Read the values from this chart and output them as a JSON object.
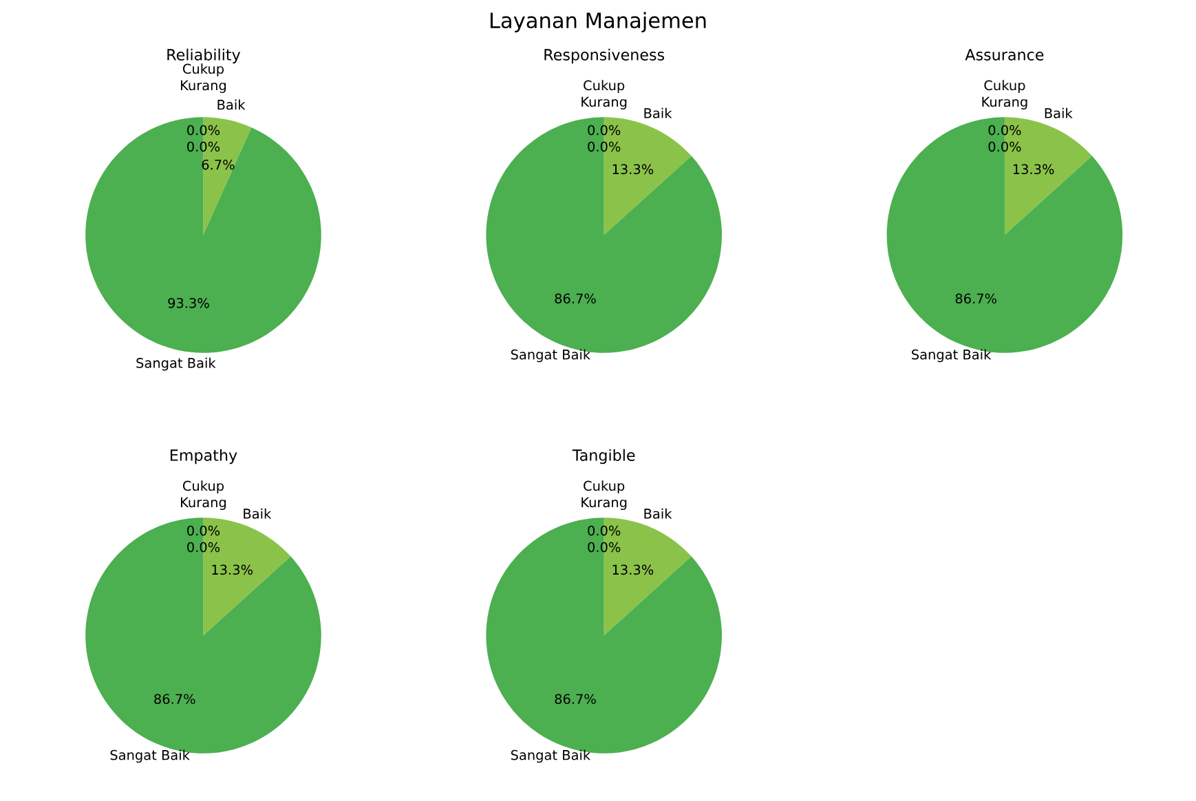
{
  "chart_data": [
    {
      "type": "other",
      "title": "Layanan Manajemen"
    },
    {
      "type": "pie",
      "title": "Reliability",
      "categories": [
        "Kurang",
        "Cukup",
        "Baik",
        "Sangat Baik"
      ],
      "values": [
        0,
        0,
        6.7,
        93.3
      ],
      "colors": [
        "#2e7d32",
        "#cddc39",
        "#8bc34a",
        "#4caf50"
      ],
      "value_labels": [
        "0.0%",
        "0.0%",
        "6.7%",
        "93.3%"
      ]
    },
    {
      "type": "pie",
      "title": "Responsiveness",
      "categories": [
        "Kurang",
        "Cukup",
        "Baik",
        "Sangat Baik"
      ],
      "values": [
        0,
        0,
        13.3,
        86.7
      ],
      "colors": [
        "#2e7d32",
        "#cddc39",
        "#8bc34a",
        "#4caf50"
      ],
      "value_labels": [
        "0.0%",
        "0.0%",
        "13.3%",
        "86.7%"
      ]
    },
    {
      "type": "pie",
      "title": "Assurance",
      "categories": [
        "Kurang",
        "Cukup",
        "Baik",
        "Sangat Baik"
      ],
      "values": [
        0,
        0,
        13.3,
        86.7
      ],
      "colors": [
        "#2e7d32",
        "#cddc39",
        "#8bc34a",
        "#4caf50"
      ],
      "value_labels": [
        "0.0%",
        "0.0%",
        "13.3%",
        "86.7%"
      ]
    },
    {
      "type": "pie",
      "title": "Empathy",
      "categories": [
        "Kurang",
        "Cukup",
        "Baik",
        "Sangat Baik"
      ],
      "values": [
        0,
        0,
        13.3,
        86.7
      ],
      "colors": [
        "#2e7d32",
        "#cddc39",
        "#8bc34a",
        "#4caf50"
      ],
      "value_labels": [
        "0.0%",
        "0.0%",
        "13.3%",
        "86.7%"
      ]
    },
    {
      "type": "pie",
      "title": "Tangible",
      "categories": [
        "Kurang",
        "Cukup",
        "Baik",
        "Sangat Baik"
      ],
      "values": [
        0,
        0,
        13.3,
        86.7
      ],
      "colors": [
        "#2e7d32",
        "#cddc39",
        "#8bc34a",
        "#4caf50"
      ],
      "value_labels": [
        "0.0%",
        "0.0%",
        "13.3%",
        "86.7%"
      ]
    }
  ]
}
